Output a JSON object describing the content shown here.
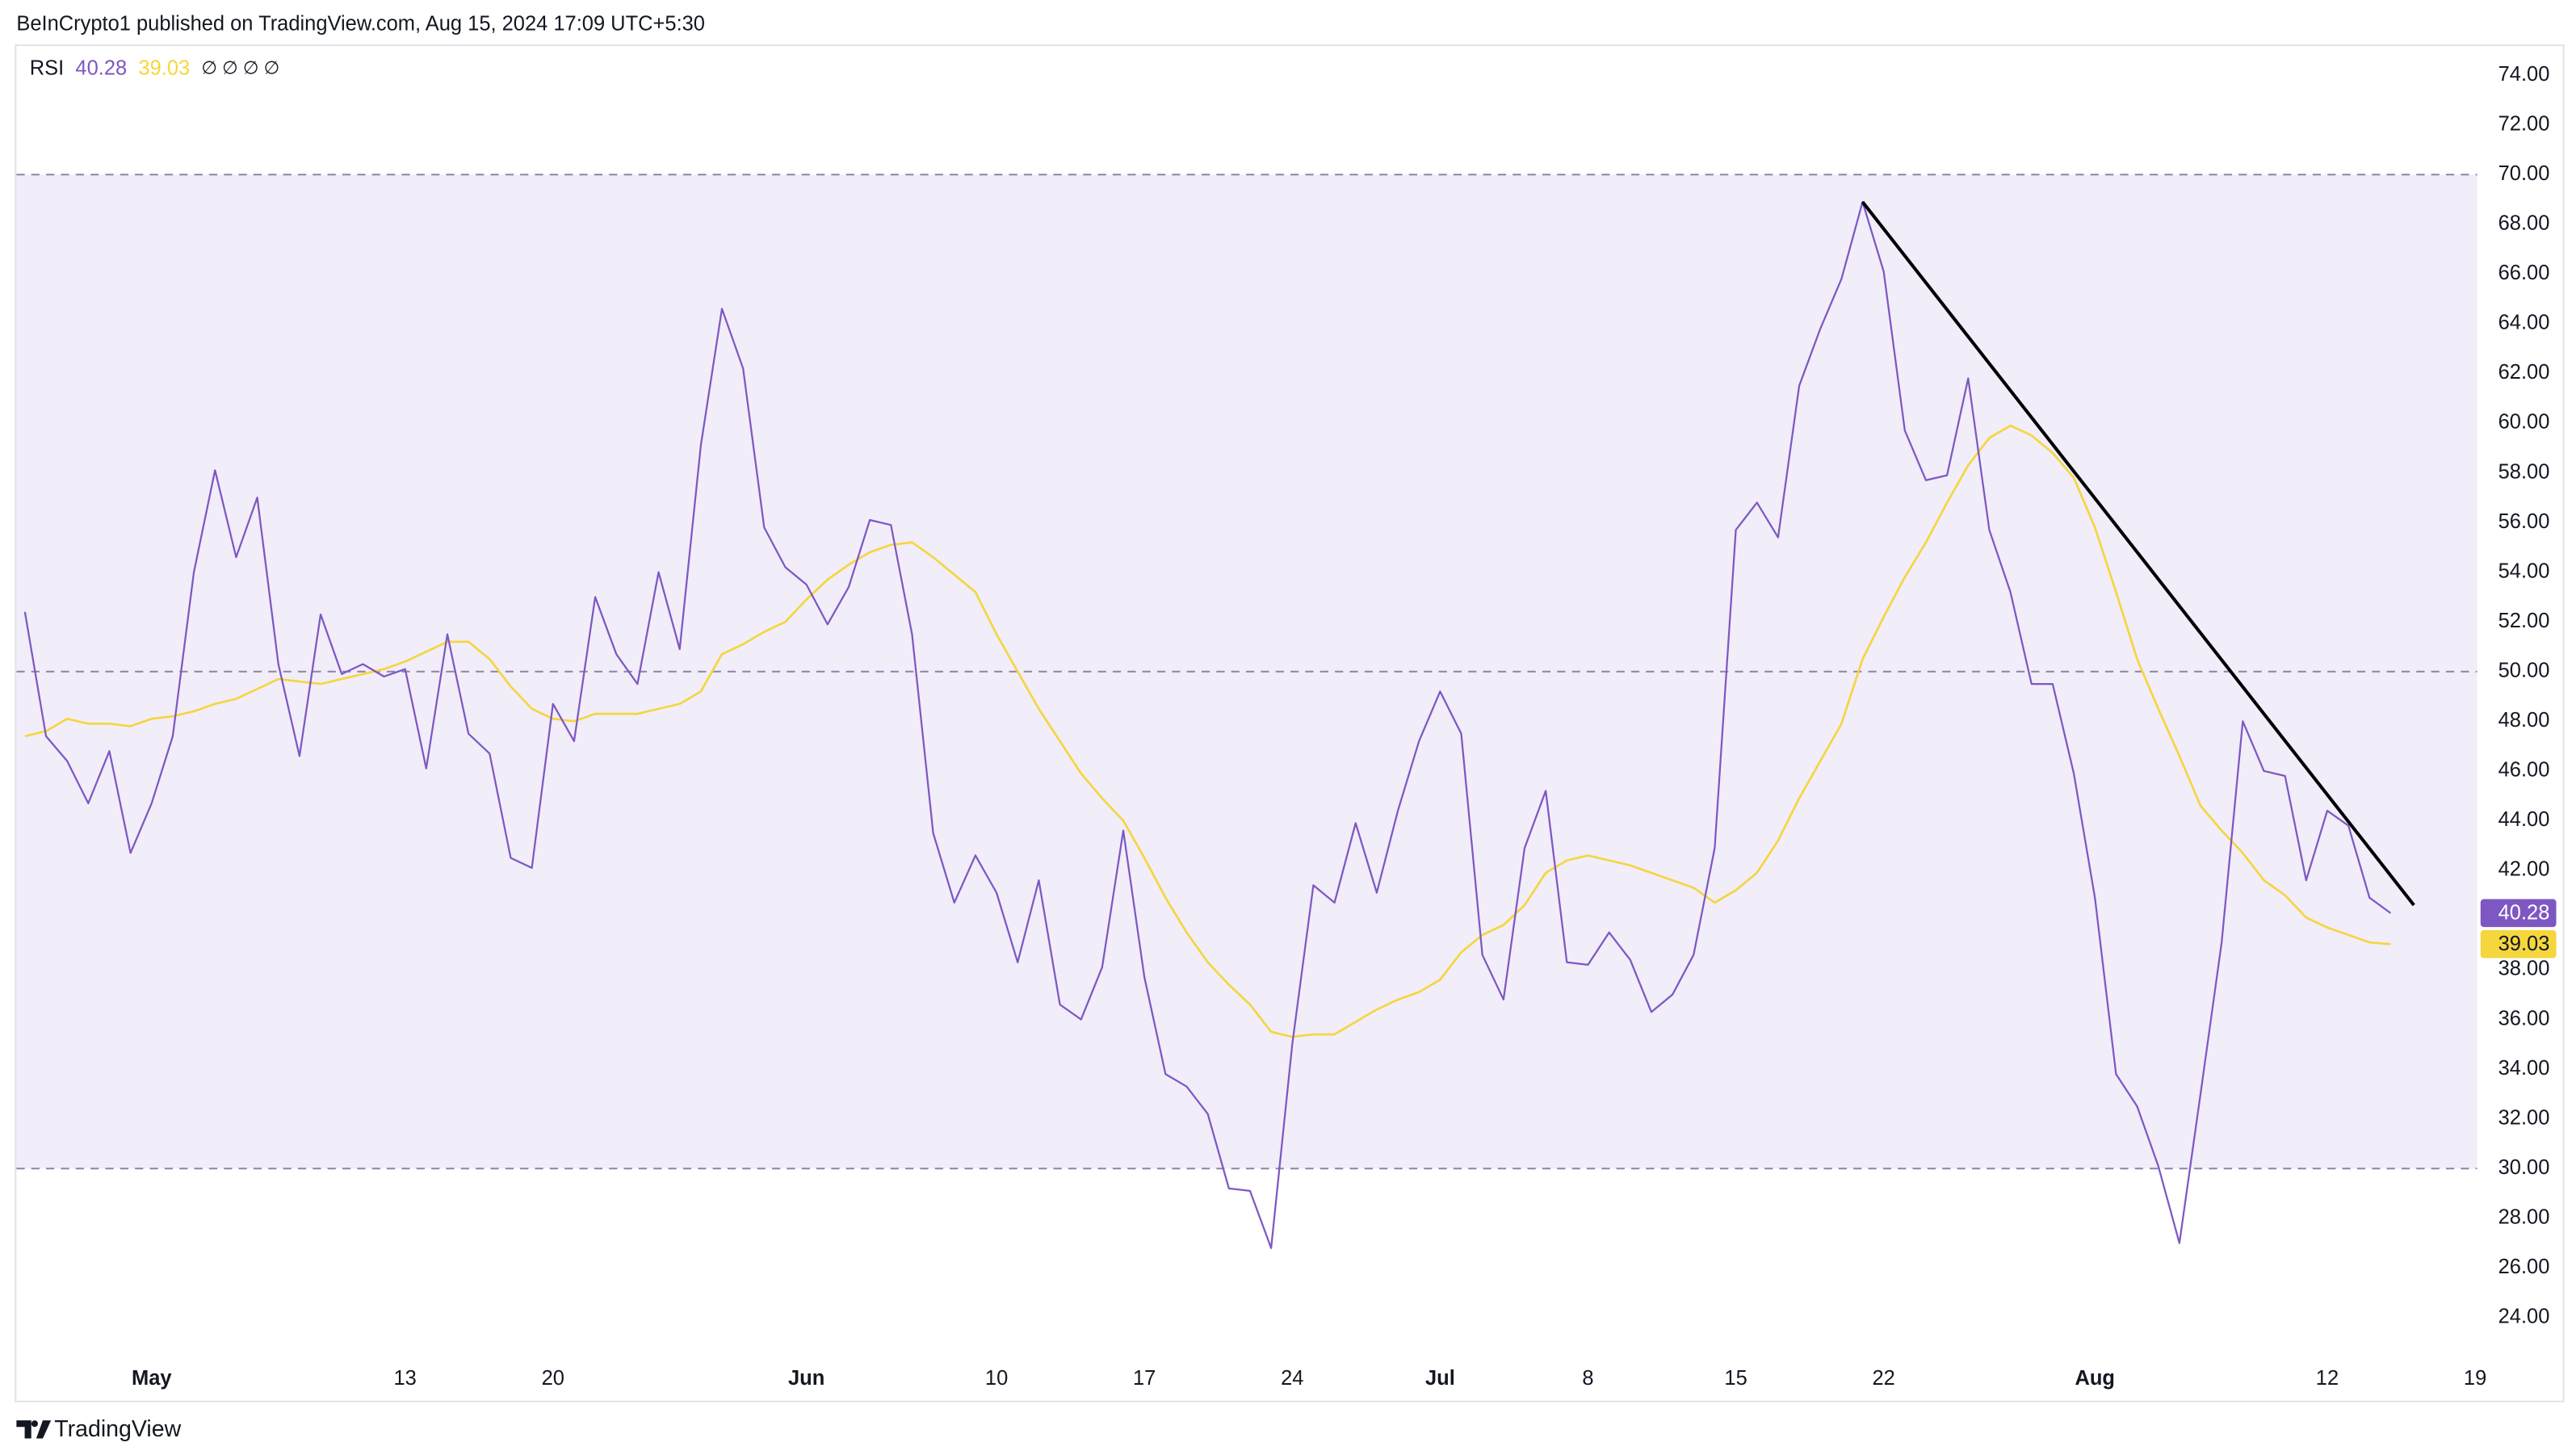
{
  "header": "BeInCrypto1 published on TradingView.com, Aug 15, 2024 17:09 UTC+5:30",
  "footer": "TradingView",
  "chart_data": {
    "type": "line",
    "indicator": "RSI",
    "header_icons": "∅ ∅ ∅ ∅",
    "x": [
      -6,
      -5,
      -4,
      -3,
      -2,
      -1,
      0,
      1,
      2,
      3,
      4,
      5,
      6,
      7,
      8,
      9,
      10,
      11,
      12,
      13,
      14,
      15,
      16,
      17,
      18,
      19,
      20,
      21,
      22,
      23,
      24,
      25,
      26,
      27,
      28,
      29,
      30,
      31,
      32,
      33,
      34,
      35,
      36,
      37,
      38,
      39,
      40,
      41,
      42,
      43,
      44,
      45,
      46,
      47,
      48,
      49,
      50,
      51,
      52,
      53,
      54,
      55,
      56,
      57,
      58,
      59,
      60,
      61,
      62,
      63,
      64,
      65,
      66,
      67,
      68,
      69,
      70,
      71,
      72,
      73,
      74,
      75,
      76,
      77,
      78,
      79,
      80,
      81,
      82,
      83,
      84,
      85,
      86,
      87,
      88,
      89,
      90,
      91,
      92,
      93,
      94,
      95,
      96,
      97,
      98,
      99,
      100,
      101,
      102,
      103,
      104,
      105,
      106
    ],
    "series": [
      {
        "color": "#7e57c2",
        "values": [
          52.4,
          47.4,
          46.4,
          44.7,
          46.8,
          42.7,
          44.7,
          47.4,
          54.0,
          58.1,
          54.6,
          57.0,
          50.3,
          46.6,
          52.3,
          49.9,
          50.3,
          49.8,
          50.1,
          46.1,
          51.5,
          47.5,
          46.7,
          42.5,
          42.1,
          48.7,
          47.2,
          53.0,
          50.7,
          49.5,
          54.0,
          50.9,
          59.1,
          64.6,
          62.2,
          55.8,
          54.2,
          53.5,
          51.9,
          53.4,
          56.1,
          55.9,
          51.5,
          43.5,
          40.7,
          42.6,
          41.1,
          38.3,
          41.6,
          36.6,
          36.0,
          38.1,
          43.6,
          37.7,
          33.8,
          33.3,
          32.2,
          29.2,
          29.1,
          26.8,
          35.0,
          41.4,
          40.7,
          43.9,
          41.1,
          44.4,
          47.2,
          49.2,
          47.5,
          38.6,
          36.8,
          42.9,
          45.2,
          38.3,
          38.2,
          39.5,
          38.4,
          36.3,
          37.0,
          38.6,
          42.9,
          55.7,
          56.8,
          55.4,
          61.5,
          63.8,
          65.8,
          68.9,
          66.1,
          59.7,
          57.7,
          57.9,
          61.8,
          55.7,
          53.2,
          49.5,
          49.5,
          45.9,
          40.9,
          33.8,
          32.5,
          30.1,
          27.0,
          33.0,
          39.1,
          48.0,
          46.0,
          45.8,
          41.6,
          44.4,
          43.8,
          40.9,
          40.28
        ]
      },
      {
        "color": "#f5d63d",
        "values": [
          47.4,
          47.6,
          48.1,
          47.9,
          47.9,
          47.8,
          48.1,
          48.2,
          48.4,
          48.7,
          48.9,
          49.3,
          49.7,
          49.6,
          49.5,
          49.7,
          49.9,
          50.1,
          50.4,
          50.8,
          51.2,
          51.2,
          50.5,
          49.4,
          48.5,
          48.1,
          48.0,
          48.3,
          48.3,
          48.3,
          48.5,
          48.7,
          49.2,
          50.7,
          51.1,
          51.6,
          52.0,
          52.9,
          53.7,
          54.3,
          54.8,
          55.1,
          55.2,
          54.6,
          53.9,
          53.2,
          51.5,
          50.0,
          48.5,
          47.2,
          45.9,
          44.9,
          44.0,
          42.5,
          40.9,
          39.5,
          38.3,
          37.4,
          36.6,
          35.5,
          35.3,
          35.4,
          35.4,
          35.9,
          36.4,
          36.8,
          37.1,
          37.6,
          38.7,
          39.4,
          39.8,
          40.6,
          41.9,
          42.4,
          42.6,
          42.4,
          42.2,
          41.9,
          41.6,
          41.3,
          40.7,
          41.2,
          41.9,
          43.2,
          44.9,
          46.4,
          47.9,
          50.5,
          52.2,
          53.8,
          55.2,
          56.8,
          58.3,
          59.4,
          59.9,
          59.5,
          58.8,
          57.8,
          55.8,
          53.2,
          50.5,
          48.5,
          46.6,
          44.6,
          43.6,
          42.7,
          41.6,
          41.0,
          40.1,
          39.7,
          39.4,
          39.1,
          39.03
        ]
      }
    ],
    "trendline": {
      "x": [
        81,
        107.1
      ],
      "y": [
        68.9,
        40.6
      ],
      "color": "#000000"
    },
    "levels": [
      70,
      50,
      30
    ],
    "band": [
      30,
      70
    ],
    "band_color": "#f1edf9",
    "xlim": [
      -6.4,
      110.1
    ],
    "ylim": [
      22.58,
      75.17
    ],
    "xticks": [
      {
        "value": 0,
        "label": "May"
      },
      {
        "value": 12,
        "label": "13"
      },
      {
        "value": 19,
        "label": "20"
      },
      {
        "value": 31,
        "label": "Jun"
      },
      {
        "value": 40,
        "label": "10"
      },
      {
        "value": 47,
        "label": "17"
      },
      {
        "value": 54,
        "label": "24"
      },
      {
        "value": 61,
        "label": "Jul"
      },
      {
        "value": 68,
        "label": "8"
      },
      {
        "value": 75,
        "label": "15"
      },
      {
        "value": 82,
        "label": "22"
      },
      {
        "value": 92,
        "label": "Aug"
      },
      {
        "value": 103,
        "label": "12"
      },
      {
        "value": 110,
        "label": "19"
      }
    ],
    "yticks": [
      {
        "value": 24,
        "label": "24.00"
      },
      {
        "value": 26,
        "label": "26.00"
      },
      {
        "value": 28,
        "label": "28.00"
      },
      {
        "value": 30,
        "label": "30.00"
      },
      {
        "value": 32,
        "label": "32.00"
      },
      {
        "value": 34,
        "label": "34.00"
      },
      {
        "value": 36,
        "label": "36.00"
      },
      {
        "value": 38,
        "label": "38.00"
      },
      {
        "value": 40,
        "label": "40.00"
      },
      {
        "value": 42,
        "label": "42.00"
      },
      {
        "value": 44,
        "label": "44.00"
      },
      {
        "value": 46,
        "label": "46.00"
      },
      {
        "value": 48,
        "label": "48.00"
      },
      {
        "value": 50,
        "label": "50.00"
      },
      {
        "value": 52,
        "label": "52.00"
      },
      {
        "value": 54,
        "label": "54.00"
      },
      {
        "value": 56,
        "label": "56.00"
      },
      {
        "value": 58,
        "label": "58.00"
      },
      {
        "value": 60,
        "label": "60.00"
      },
      {
        "value": 62,
        "label": "62.00"
      },
      {
        "value": 64,
        "label": "64.00"
      },
      {
        "value": 66,
        "label": "66.00"
      },
      {
        "value": 68,
        "label": "68.00"
      },
      {
        "value": 70,
        "label": "70.00"
      },
      {
        "value": 72,
        "label": "72.00"
      },
      {
        "value": 74,
        "label": "74.00"
      }
    ]
  }
}
